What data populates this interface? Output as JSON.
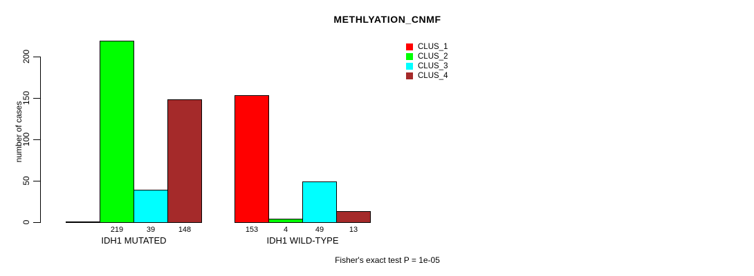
{
  "title": "METHLYATION_CNMF",
  "ylabel": "number of cases",
  "footer": "Fisher's exact test P = 1e-05",
  "legend": [
    {
      "label": "CLUS_1",
      "color": "#FF0000"
    },
    {
      "label": "CLUS_2",
      "color": "#00FF00"
    },
    {
      "label": "CLUS_3",
      "color": "#00FFFF"
    },
    {
      "label": "CLUS_4",
      "color": "#A52A2A"
    }
  ],
  "chart_data": {
    "type": "bar",
    "title": "METHLYATION_CNMF",
    "xlabel": "",
    "ylabel": "number of cases",
    "categories": [
      "IDH1 MUTATED",
      "IDH1 WILD-TYPE"
    ],
    "series": [
      {
        "name": "CLUS_1",
        "color": "#FF0000",
        "values": [
          0,
          153
        ]
      },
      {
        "name": "CLUS_2",
        "color": "#00FF00",
        "values": [
          219,
          4
        ]
      },
      {
        "name": "CLUS_3",
        "color": "#00FFFF",
        "values": [
          39,
          49
        ]
      },
      {
        "name": "CLUS_4",
        "color": "#A52A2A",
        "values": [
          148,
          13
        ]
      }
    ],
    "yticks": [
      0,
      50,
      100,
      150,
      200
    ],
    "ylim": [
      0,
      220
    ],
    "grid": false,
    "legend_position": "top-right",
    "bar_value_labels_shown": true,
    "zero_bars_unlabeled": true,
    "annotation": "Fisher's exact test P = 1e-05"
  }
}
